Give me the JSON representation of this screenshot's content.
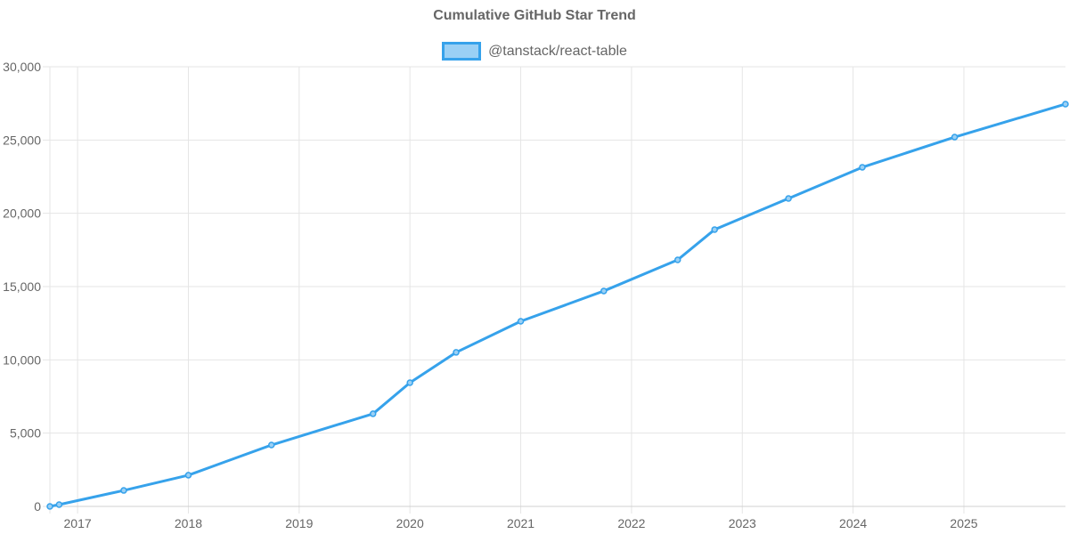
{
  "chart_data": {
    "type": "line",
    "title": "Cumulative GitHub Star Trend",
    "xlabel": "",
    "ylabel": "",
    "legend": {
      "position": "top",
      "entries": [
        "@tanstack/react-table"
      ]
    },
    "grid": true,
    "ylim": [
      0,
      30000
    ],
    "y_ticks": [
      "0",
      "5,000",
      "10,000",
      "15,000",
      "20,000",
      "25,000",
      "30,000"
    ],
    "x_ticks": [
      "2017",
      "2018",
      "2019",
      "2020",
      "2021",
      "2022",
      "2023",
      "2024",
      "2025"
    ],
    "xlim": [
      "2016-10",
      "2025-12"
    ],
    "series": [
      {
        "name": "@tanstack/react-table",
        "color": "#36a2eb",
        "fill": "#9ad0f5",
        "x": [
          "2016-10",
          "2016-11",
          "2017-06",
          "2018-01",
          "2018-10",
          "2019-09",
          "2020-01",
          "2020-06",
          "2021-01",
          "2021-10",
          "2022-06",
          "2022-10",
          "2023-06",
          "2024-02",
          "2024-12",
          "2025-12"
        ],
        "values": [
          0,
          120,
          1090,
          2130,
          4190,
          6320,
          8440,
          10510,
          12630,
          14700,
          16820,
          18890,
          21010,
          23140,
          25200,
          27450
        ]
      }
    ]
  },
  "header": {
    "title": "Cumulative GitHub Star Trend",
    "legend_label": "@tanstack/react-table"
  },
  "colors": {
    "line": "#36a2eb",
    "legend_fill": "#9ad0f5",
    "grid": "#e5e5e5",
    "text": "#666666"
  }
}
